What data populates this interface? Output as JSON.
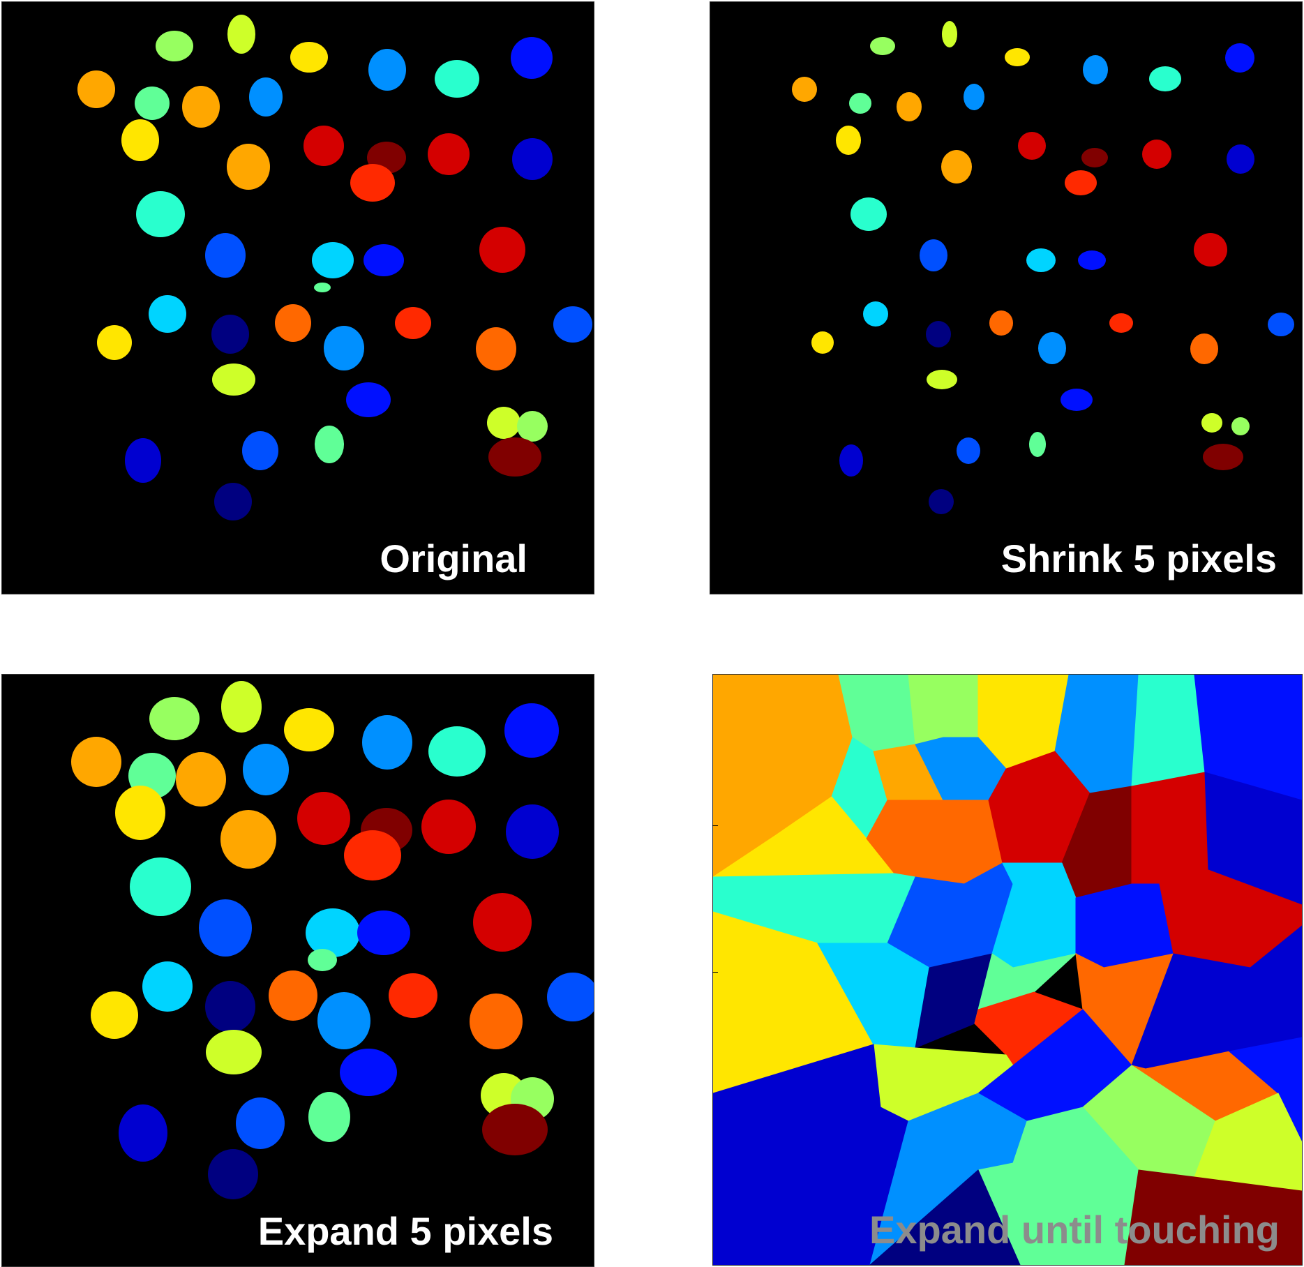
{
  "panels": [
    {
      "id": "original",
      "caption": "Original",
      "caption_color": "#ffffff"
    },
    {
      "id": "shrink",
      "caption": "Shrink 5 pixels",
      "caption_color": "#ffffff"
    },
    {
      "id": "expand",
      "caption": "Expand 5 pixels",
      "caption_color": "#ffffff"
    },
    {
      "id": "touching",
      "caption": "Expand until touching",
      "caption_color": "#8c8c8c"
    }
  ],
  "colors": {
    "background": "#000000",
    "palette": [
      "#000080",
      "#0000d0",
      "#0010ff",
      "#0050ff",
      "#0090ff",
      "#00d4ff",
      "#29ffce",
      "#60ff97",
      "#97ff60",
      "#ceff29",
      "#ffe600",
      "#ffa700",
      "#ff6800",
      "#ff2900",
      "#d40000",
      "#800000"
    ]
  }
}
